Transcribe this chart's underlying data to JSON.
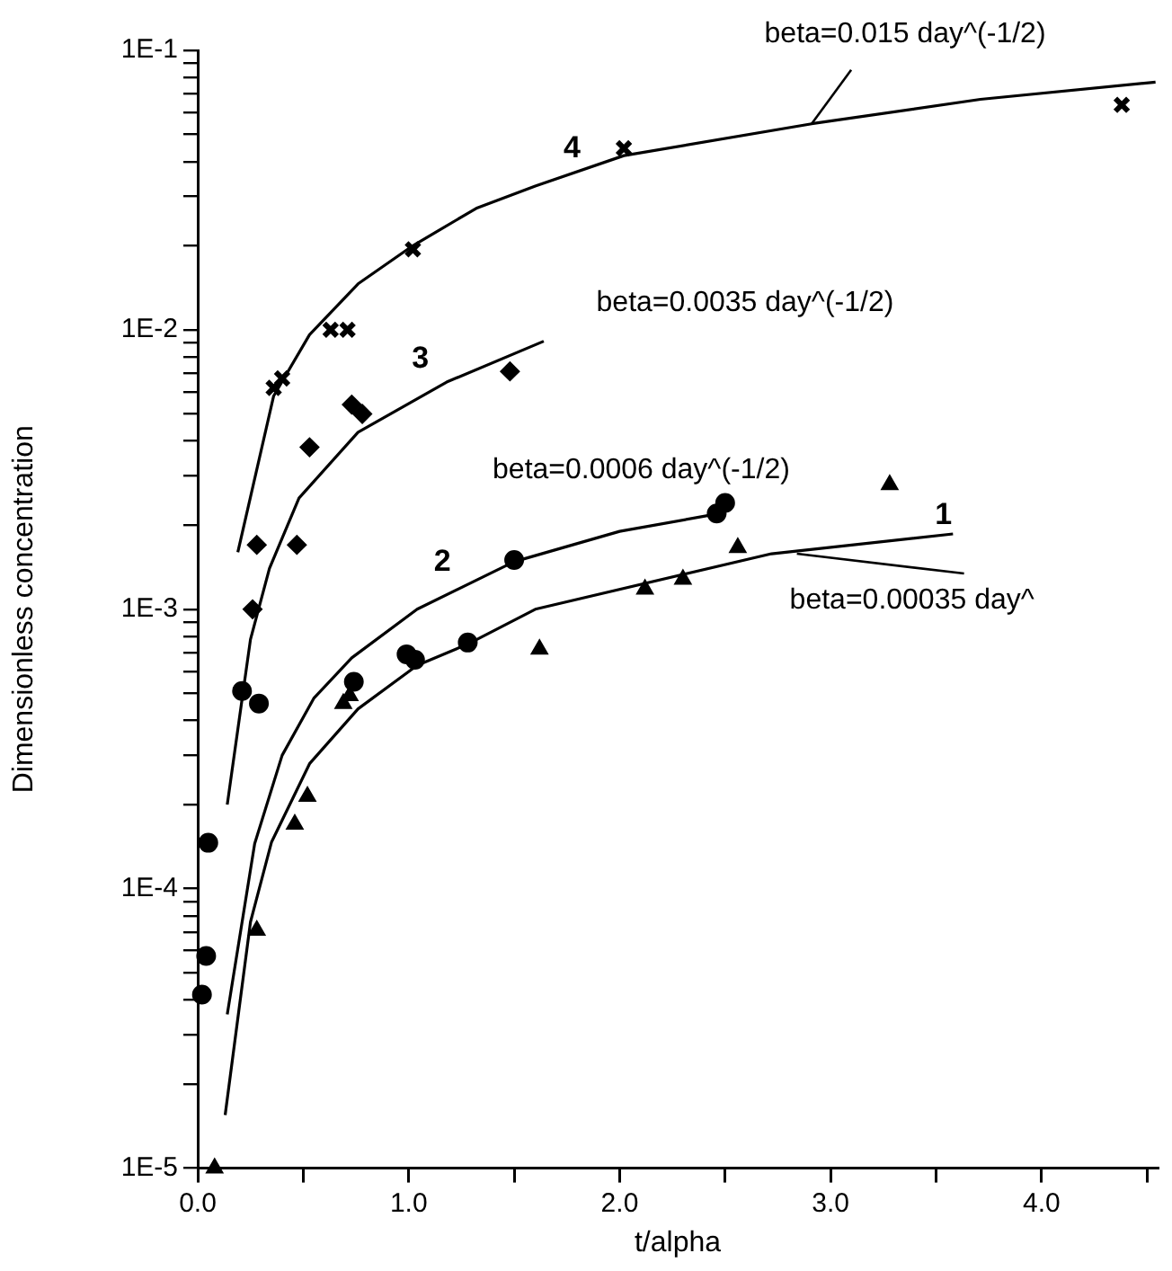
{
  "chart_data": {
    "type": "scatter",
    "xlabel": "t/alpha",
    "ylabel": "Dimensionless concentration",
    "log": "y",
    "grid": false,
    "legend": false,
    "xlim": [
      0,
      4.55
    ],
    "ylim": [
      1e-05,
      0.1
    ],
    "xticks": [
      {
        "value": 0,
        "label": "0.0"
      },
      {
        "value": 0.5,
        "label": null
      },
      {
        "value": 1,
        "label": "1.0"
      },
      {
        "value": 1.5,
        "label": null
      },
      {
        "value": 2,
        "label": "2.0"
      },
      {
        "value": 2.5,
        "label": null
      },
      {
        "value": 3,
        "label": "3.0"
      },
      {
        "value": 3.5,
        "label": null
      },
      {
        "value": 4,
        "label": "4.0"
      },
      {
        "value": 4.5,
        "label": null
      }
    ],
    "yticks": [
      {
        "value": 1e-05,
        "label": "1E-5"
      },
      {
        "value": 2e-05,
        "label": null
      },
      {
        "value": 3e-05,
        "label": null
      },
      {
        "value": 4e-05,
        "label": null
      },
      {
        "value": 5e-05,
        "label": null
      },
      {
        "value": 6e-05,
        "label": null
      },
      {
        "value": 7e-05,
        "label": null
      },
      {
        "value": 8e-05,
        "label": null
      },
      {
        "value": 9e-05,
        "label": null
      },
      {
        "value": 0.0001,
        "label": "1E-4"
      },
      {
        "value": 0.0002,
        "label": null
      },
      {
        "value": 0.0003,
        "label": null
      },
      {
        "value": 0.0004,
        "label": null
      },
      {
        "value": 0.0005,
        "label": null
      },
      {
        "value": 0.0006,
        "label": null
      },
      {
        "value": 0.0007,
        "label": null
      },
      {
        "value": 0.0008,
        "label": null
      },
      {
        "value": 0.0009,
        "label": null
      },
      {
        "value": 0.001,
        "label": "1E-3"
      },
      {
        "value": 0.002,
        "label": null
      },
      {
        "value": 0.003,
        "label": null
      },
      {
        "value": 0.004,
        "label": null
      },
      {
        "value": 0.005,
        "label": null
      },
      {
        "value": 0.006,
        "label": null
      },
      {
        "value": 0.007,
        "label": null
      },
      {
        "value": 0.008,
        "label": null
      },
      {
        "value": 0.009,
        "label": null
      },
      {
        "value": 0.01,
        "label": "1E-2"
      },
      {
        "value": 0.02,
        "label": null
      },
      {
        "value": 0.03,
        "label": null
      },
      {
        "value": 0.04,
        "label": null
      },
      {
        "value": 0.05,
        "label": null
      },
      {
        "value": 0.06,
        "label": null
      },
      {
        "value": 0.07,
        "label": null
      },
      {
        "value": 0.08,
        "label": null
      },
      {
        "value": 0.09,
        "label": null
      },
      {
        "value": 0.1,
        "label": "1E-1"
      }
    ],
    "series": [
      {
        "marker": "cross",
        "color": "#000000",
        "x": [
          0.36,
          0.4,
          0.63,
          0.71,
          1.02,
          2.02,
          4.38
        ],
        "values": [
          0.0062,
          0.0067,
          0.01,
          0.01,
          0.0194,
          0.0446,
          0.0638
        ]
      },
      {
        "marker": "diamond",
        "color": "#000000",
        "x": [
          0.26,
          0.28,
          0.47,
          0.53,
          0.73,
          0.78,
          1.48
        ],
        "values": [
          0.001,
          0.0017,
          0.0017,
          0.0038,
          0.0054,
          0.005,
          0.0071
        ]
      },
      {
        "marker": "circle",
        "color": "#000000",
        "x": [
          0.02,
          0.04,
          0.05,
          0.21,
          0.29,
          0.74,
          0.99,
          1.03,
          1.28,
          1.5,
          2.46,
          2.5
        ],
        "values": [
          4.18e-05,
          5.75e-05,
          0.000146,
          0.00051,
          0.00046,
          0.00055,
          0.00069,
          0.00066,
          0.00076,
          0.0015,
          0.0022,
          0.0024
        ]
      },
      {
        "marker": "triangle",
        "color": "#000000",
        "x": [
          0.08,
          0.28,
          0.46,
          0.52,
          0.69,
          0.72,
          1.62,
          2.12,
          2.3,
          2.56,
          3.28
        ],
        "values": [
          1e-05,
          7.1e-05,
          0.00017,
          0.000214,
          0.00046,
          0.00049,
          0.00072,
          0.00118,
          0.00128,
          0.00166,
          0.00279
        ]
      },
      {
        "type": "line",
        "marker": "none",
        "color": "#000000",
        "x": [
          0.19,
          0.36,
          0.53,
          0.76,
          1.02,
          1.32,
          1.6,
          2.02,
          2.91,
          3.71,
          4.54
        ],
        "values": [
          0.0016,
          0.0058,
          0.0096,
          0.0146,
          0.02,
          0.0272,
          0.0327,
          0.042,
          0.0546,
          0.0668,
          0.077
        ]
      },
      {
        "type": "line",
        "marker": "none",
        "color": "#000000",
        "x": [
          0.14,
          0.25,
          0.34,
          0.48,
          0.76,
          1.18,
          1.64
        ],
        "values": [
          0.0002,
          0.00078,
          0.0014,
          0.0025,
          0.0043,
          0.0065,
          0.0091
        ]
      },
      {
        "type": "line",
        "marker": "none",
        "color": "#000000",
        "x": [
          0.14,
          0.27,
          0.4,
          0.55,
          0.73,
          1.04,
          1.5,
          2.0,
          2.47
        ],
        "values": [
          3.55e-05,
          0.000145,
          0.0003,
          0.00048,
          0.00067,
          0.001,
          0.00148,
          0.0019,
          0.0022
        ]
      },
      {
        "type": "line",
        "marker": "none",
        "color": "#000000",
        "x": [
          0.13,
          0.25,
          0.35,
          0.53,
          0.76,
          1.04,
          1.28,
          1.6,
          2.72,
          3.58
        ],
        "values": [
          1.55e-05,
          7.6e-05,
          0.000147,
          0.00028,
          0.00044,
          0.00063,
          0.00075,
          0.001,
          0.00158,
          0.00186
        ]
      }
    ],
    "annotations": [
      {
        "text": "beta=0.015 day^(-1/2)",
        "x": 2.91,
        "y": 0.0546
      },
      {
        "text": "beta=0.0035 day^(-1/2)",
        "x": 1.64,
        "y": 0.0091
      },
      {
        "text": "beta=0.0006 day^(-1/2)",
        "x": 2.0,
        "y": 0.0019
      },
      {
        "text": "beta=0.00035 day^",
        "x": 2.84,
        "y": 0.00158
      },
      "4",
      "3",
      "2",
      "1"
    ]
  }
}
